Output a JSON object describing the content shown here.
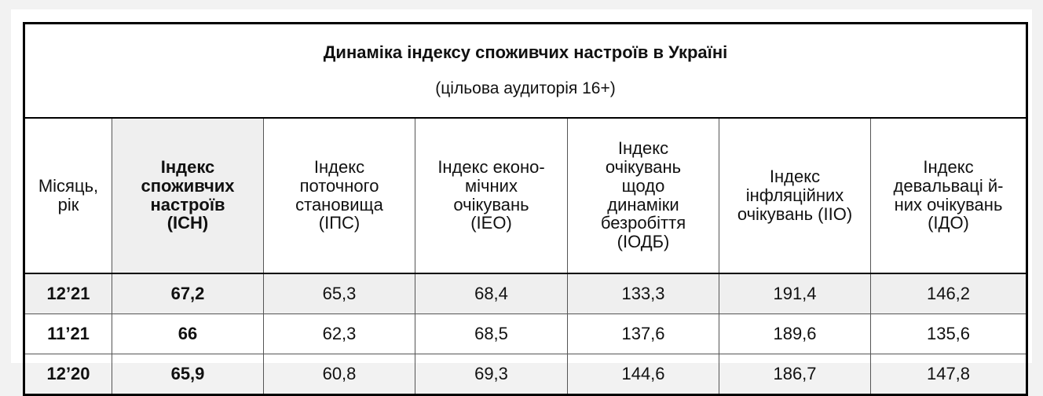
{
  "table": {
    "title": "Динаміка індексу споживчих настроїв в Україні",
    "subtitle": "(цільова аудиторія 16+)",
    "headers": [
      "Місяць,\nрік",
      "Індекс\nспоживчих\nнастроїв\n(ІСН)",
      "Індекс\nпоточного\nстановища\n(ІПС)",
      "Індекс еконо-\nмічних\nочікувань\n(ІЕО)",
      "Індекс\nочікувань\nщодо\nдинаміки\nбезробіття\n(ІОДБ)",
      "Індекс\nінфляційних\nочікувань (ІІО)",
      "Індекс\nдевальваці й-\nних очікувань\n(ІДО)"
    ],
    "rows": [
      [
        "12’21",
        "67,2",
        "65,3",
        "68,4",
        "133,3",
        "191,4",
        "146,2"
      ],
      [
        "11’21",
        "66",
        "62,3",
        "68,5",
        "137,6",
        "189,6",
        "135,6"
      ],
      [
        "12’20",
        "65,9",
        "60,8",
        "69,3",
        "144,6",
        "186,7",
        "147,8"
      ]
    ]
  }
}
